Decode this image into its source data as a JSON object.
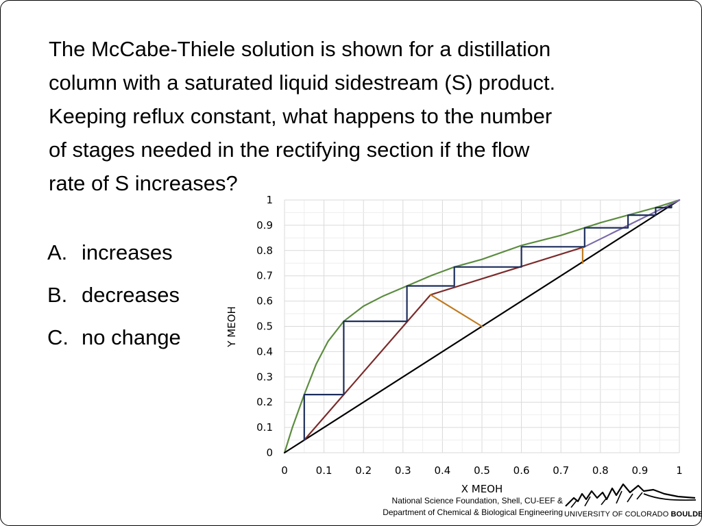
{
  "question": {
    "lines": [
      "The McCabe-Thiele solution is shown for a distillation",
      "column with a saturated liquid sidestream (S) product.",
      "Keeping reflux constant, what happens to the number",
      "of stages needed in the rectifying section if the flow",
      "rate of S increases?"
    ]
  },
  "choices": [
    {
      "letter": "A.",
      "text": "increases"
    },
    {
      "letter": "B.",
      "text": "decreases"
    },
    {
      "letter": "C.",
      "text": "no change"
    }
  ],
  "chart_data": {
    "type": "line",
    "xlabel": "X MEOH",
    "ylabel": "Y MEOH",
    "xlim": [
      0,
      1
    ],
    "ylim": [
      0,
      1
    ],
    "grid": true,
    "xticks": [
      "0",
      "0.1",
      "0.2",
      "0.3",
      "0.4",
      "0.5",
      "0.6",
      "0.7",
      "0.8",
      "0.9",
      "1"
    ],
    "yticks": [
      "0",
      "0.1",
      "0.2",
      "0.3",
      "0.4",
      "0.5",
      "0.6",
      "0.7",
      "0.8",
      "0.9",
      "1"
    ],
    "series": [
      {
        "color": "#5b8c3e",
        "x": [
          0,
          0.02,
          0.05,
          0.08,
          0.11,
          0.15,
          0.2,
          0.25,
          0.31,
          0.37,
          0.43,
          0.5,
          0.6,
          0.7,
          0.76,
          0.8,
          0.87,
          0.94,
          1
        ],
        "y": [
          0,
          0.1,
          0.23,
          0.35,
          0.44,
          0.52,
          0.58,
          0.62,
          0.66,
          0.7,
          0.735,
          0.765,
          0.82,
          0.86,
          0.89,
          0.91,
          0.94,
          0.97,
          1
        ]
      },
      {
        "color": "#000000",
        "x": [
          0,
          1
        ],
        "y": [
          0,
          1
        ]
      },
      {
        "color": "#7b2a2a",
        "x": [
          0.05,
          0.37,
          0.76
        ],
        "y": [
          0.05,
          0.625,
          0.815
        ]
      },
      {
        "color": "#7b6aa8",
        "x": [
          0.76,
          1
        ],
        "y": [
          0.815,
          1
        ]
      },
      {
        "color": "#c07a1e",
        "x": [
          0.37,
          0.5
        ],
        "y": [
          0.625,
          0.5
        ]
      },
      {
        "color": "#c07a1e",
        "x": [
          0.755,
          0.755
        ],
        "y": [
          0.815,
          0.75
        ]
      },
      {
        "color": "#1c2d5c",
        "x": [
          0.05,
          0.05,
          0.15,
          0.15,
          0.31,
          0.31,
          0.43,
          0.43,
          0.6,
          0.6,
          0.76,
          0.76,
          0.87,
          0.87,
          0.94,
          0.94,
          0.98,
          0.98
        ],
        "y": [
          0.05,
          0.23,
          0.23,
          0.52,
          0.52,
          0.66,
          0.66,
          0.735,
          0.735,
          0.815,
          0.815,
          0.89,
          0.89,
          0.94,
          0.94,
          0.97,
          0.97,
          0.98
        ]
      }
    ]
  },
  "footer": {
    "line1": "National Science Foundation, Shell, CU-EEF &",
    "line2": "Department of Chemical & Biological Engineering",
    "university_prefix": "UNIVERSITY OF COLORADO ",
    "university_bold": "BOULDER",
    "logo_icon": "flatirons-mountains-icon"
  }
}
